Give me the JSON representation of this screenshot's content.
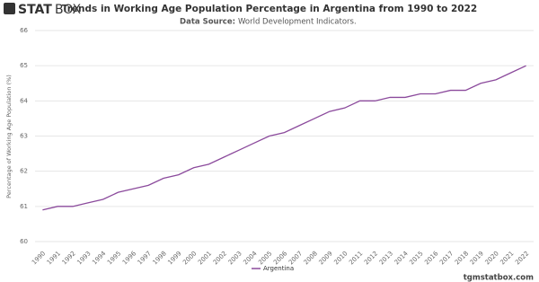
{
  "header": {
    "logo_bold": "STAT",
    "logo_light": "BOX"
  },
  "chart_data": {
    "type": "line",
    "title": "Trends in Working Age Population Percentage in Argentina from 1990 to 2022",
    "source_label": "Data Source:",
    "source": "World Development Indicators.",
    "y_label": "Percentage of Working Age Population (%)",
    "categories": [
      "1990",
      "1991",
      "1992",
      "1993",
      "1994",
      "1995",
      "1996",
      "1997",
      "1998",
      "1999",
      "2000",
      "2001",
      "2002",
      "2003",
      "2004",
      "2005",
      "2006",
      "2007",
      "2008",
      "2009",
      "2010",
      "2011",
      "2012",
      "2013",
      "2014",
      "2015",
      "2016",
      "2017",
      "2018",
      "2019",
      "2020",
      "2021",
      "2022"
    ],
    "series": [
      {
        "name": "Argentina",
        "color": "#8b4a9c",
        "values": [
          60.9,
          61.0,
          61.0,
          61.1,
          61.2,
          61.4,
          61.5,
          61.6,
          61.8,
          61.9,
          62.1,
          62.2,
          62.4,
          62.6,
          62.8,
          63.0,
          63.1,
          63.3,
          63.5,
          63.7,
          63.8,
          64.0,
          64.0,
          64.1,
          64.1,
          64.2,
          64.2,
          64.3,
          64.3,
          64.5,
          64.6,
          64.8,
          65.0
        ]
      }
    ],
    "ylim": [
      60,
      66
    ],
    "yticks": [
      60,
      61,
      62,
      63,
      64,
      65,
      66
    ],
    "grid": true,
    "legend": "bottom"
  },
  "footer": {
    "site": "tgmstatbox.com"
  }
}
